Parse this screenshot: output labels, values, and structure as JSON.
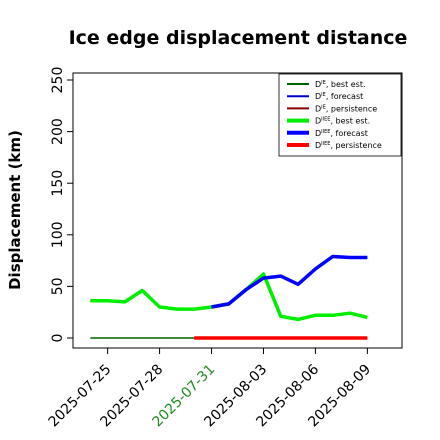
{
  "chart_data": {
    "type": "line",
    "title": "Ice edge displacement distance",
    "ylabel": "Displacement (km)",
    "xlabel": "",
    "ylim": [
      0,
      260
    ],
    "yticks": [
      0,
      50,
      100,
      150,
      200,
      250
    ],
    "xlim": [
      "2025-07-23",
      "2025-08-11"
    ],
    "xticks": [
      {
        "label": "2025-07-25",
        "color": "#000000"
      },
      {
        "label": "2025-07-28",
        "color": "#000000"
      },
      {
        "label": "2025-07-31",
        "color": "#228B22"
      },
      {
        "label": "2025-08-03",
        "color": "#000000"
      },
      {
        "label": "2025-08-06",
        "color": "#000000"
      },
      {
        "label": "2025-08-09",
        "color": "#000000"
      }
    ],
    "grid": false,
    "legend_placement": "top-right",
    "legend": [
      {
        "name": "D",
        "sup": "IE",
        "suffix": ", best est.",
        "color": "#006400",
        "width": 2
      },
      {
        "name": "D",
        "sup": "IE",
        "suffix": ", forecast",
        "color": "#0000cd",
        "width": 2
      },
      {
        "name": "D",
        "sup": "IE",
        "suffix": ", persistence",
        "color": "#8b0000",
        "width": 2
      },
      {
        "name": "D",
        "sup": "IIEE",
        "suffix": ", best est.",
        "color": "#00ee00",
        "width": 4
      },
      {
        "name": "D",
        "sup": "IIEE",
        "suffix": ", forecast",
        "color": "#0000ff",
        "width": 4
      },
      {
        "name": "D",
        "sup": "IIEE",
        "suffix": ", persistence",
        "color": "#ff0000",
        "width": 4
      }
    ],
    "series": [
      {
        "color": "#006400",
        "width": 1.5,
        "points": [
          [
            "2025-07-24",
            0
          ],
          [
            "2025-08-09",
            0
          ]
        ]
      },
      {
        "color": "#00ee00",
        "width": 3.5,
        "points": [
          [
            "2025-07-24",
            36
          ],
          [
            "2025-07-25",
            36
          ],
          [
            "2025-07-26",
            35
          ],
          [
            "2025-07-27",
            46
          ],
          [
            "2025-07-28",
            30
          ],
          [
            "2025-07-29",
            28
          ],
          [
            "2025-07-30",
            28
          ],
          [
            "2025-07-31",
            30
          ],
          [
            "2025-08-01",
            33
          ],
          [
            "2025-08-02",
            47
          ],
          [
            "2025-08-03",
            62
          ],
          [
            "2025-08-04",
            21
          ],
          [
            "2025-08-05",
            18
          ],
          [
            "2025-08-06",
            22
          ],
          [
            "2025-08-07",
            22
          ],
          [
            "2025-08-08",
            24
          ],
          [
            "2025-08-09",
            20
          ]
        ]
      },
      {
        "color": "#0000ff",
        "width": 3.5,
        "points": [
          [
            "2025-07-31",
            30
          ],
          [
            "2025-08-01",
            33
          ],
          [
            "2025-08-02",
            47
          ],
          [
            "2025-08-03",
            58
          ],
          [
            "2025-08-04",
            60
          ],
          [
            "2025-08-05",
            52
          ],
          [
            "2025-08-06",
            67
          ],
          [
            "2025-08-07",
            79
          ],
          [
            "2025-08-08",
            78
          ],
          [
            "2025-08-09",
            78
          ]
        ]
      },
      {
        "color": "#ff0000",
        "width": 3.5,
        "points": [
          [
            "2025-07-30",
            0
          ],
          [
            "2025-08-09",
            0
          ]
        ]
      }
    ]
  }
}
